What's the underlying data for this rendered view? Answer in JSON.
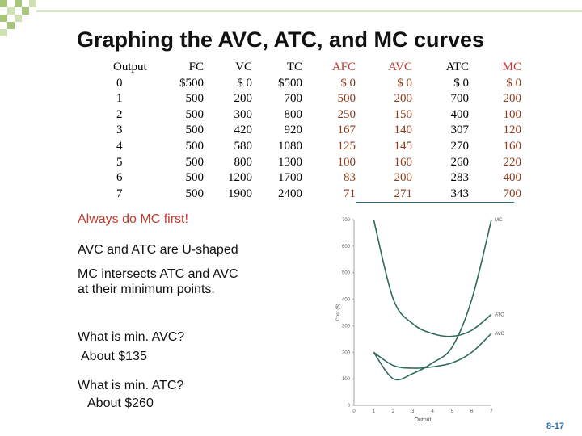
{
  "title": "Graphing the  AVC, ATC, and MC curves",
  "table": {
    "headers": [
      {
        "label": "Output",
        "cls": ""
      },
      {
        "label": "FC",
        "cls": ""
      },
      {
        "label": "VC",
        "cls": ""
      },
      {
        "label": "TC",
        "cls": ""
      },
      {
        "label": "AFC",
        "cls": "red"
      },
      {
        "label": "AVC",
        "cls": "red"
      },
      {
        "label": "ATC",
        "cls": ""
      },
      {
        "label": "MC",
        "cls": "red"
      }
    ],
    "rows": [
      [
        "0",
        "$500",
        "$  0",
        "$500",
        "$  0",
        "$  0",
        "$  0",
        "$  0"
      ],
      [
        "1",
        "500",
        "200",
        "700",
        "500",
        "200",
        "700",
        "200"
      ],
      [
        "2",
        "500",
        "300",
        "800",
        "250",
        "150",
        "400",
        "100"
      ],
      [
        "3",
        "500",
        "420",
        "920",
        "167",
        "140",
        "307",
        "120"
      ],
      [
        "4",
        "500",
        "580",
        "1080",
        "125",
        "145",
        "270",
        "160"
      ],
      [
        "5",
        "500",
        "800",
        "1300",
        "100",
        "160",
        "260",
        "220"
      ],
      [
        "6",
        "500",
        "1200",
        "1700",
        "83",
        "200",
        "283",
        "400"
      ],
      [
        "7",
        "500",
        "1900",
        "2400",
        "71",
        "271",
        "343",
        "700"
      ]
    ]
  },
  "notes": {
    "mc_first": "Always do MC first!",
    "ushaped": "AVC and ATC are U-shaped",
    "intersect": "MC intersects ATC and AVC at their minimum points.",
    "min_avc_q": "What is min. AVC?",
    "min_avc_a": "About $135",
    "min_atc_q": "What is min. ATC?",
    "min_atc_a": "About $260"
  },
  "chart_data": {
    "type": "line",
    "xlabel": "Output",
    "ylabel": "Cost ($)",
    "xlim": [
      0,
      7
    ],
    "ylim": [
      0,
      700
    ],
    "x_ticks": [
      0,
      1,
      2,
      3,
      4,
      5,
      6,
      7
    ],
    "y_ticks": [
      0,
      100,
      200,
      300,
      400,
      500,
      600,
      700
    ],
    "series": [
      {
        "name": "MC",
        "x": [
          1,
          2,
          3,
          4,
          5,
          6,
          7
        ],
        "values": [
          200,
          100,
          120,
          160,
          220,
          400,
          700
        ]
      },
      {
        "name": "ATC",
        "x": [
          1,
          2,
          3,
          4,
          5,
          6,
          7
        ],
        "values": [
          700,
          400,
          307,
          270,
          260,
          283,
          343
        ]
      },
      {
        "name": "AVC",
        "x": [
          1,
          2,
          3,
          4,
          5,
          6,
          7
        ],
        "values": [
          200,
          150,
          140,
          145,
          160,
          200,
          271
        ]
      }
    ],
    "colors": {
      "line": "#2f6b5e",
      "axis": "#888888",
      "text": "#555555"
    }
  },
  "page_number": "8-17",
  "colors": {
    "accent": "#a8c67a",
    "red": "#c0392b",
    "page_number": "#2a6fb0"
  }
}
